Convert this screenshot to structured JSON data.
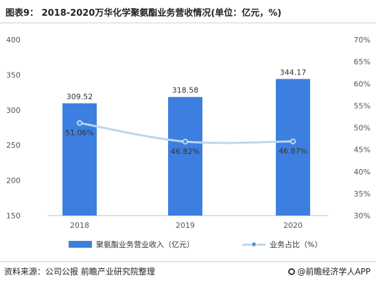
{
  "title": "图表9： 2018-2020万华化学聚氨酯业务营收情况(单位：亿元，%)",
  "chart_data": {
    "type": "bar",
    "categories": [
      "2018",
      "2019",
      "2020"
    ],
    "series": [
      {
        "name": "聚氨酯业务营业收入（亿元）",
        "type": "bar",
        "axis": "left",
        "values": [
          309.52,
          318.58,
          344.17
        ],
        "labels": [
          "309.52",
          "318.58",
          "344.17"
        ],
        "color": "#3d7fe0"
      },
      {
        "name": "业务占比（%）",
        "type": "line",
        "axis": "right",
        "values": [
          51.06,
          46.82,
          46.87
        ],
        "labels": [
          "51.06%",
          "46.82%",
          "46.87%"
        ],
        "color": "#bcd6ee"
      }
    ],
    "y_left": {
      "min": 150,
      "max": 400,
      "ticks": [
        "400",
        "350",
        "300",
        "250",
        "200",
        "150"
      ]
    },
    "y_right": {
      "min": 30,
      "max": 70,
      "ticks": [
        "70%",
        "65%",
        "60%",
        "55%",
        "50%",
        "45%",
        "40%",
        "35%",
        "30%"
      ]
    },
    "legend_position": "bottom",
    "grid": false
  },
  "legend": {
    "bar_label": "聚氨酯业务营业收入（亿元）",
    "line_label": "业务占比（%）"
  },
  "footer": {
    "source": "资料来源：公司公报 前瞻产业研究院整理",
    "brand": "@前瞻经济学人APP"
  }
}
